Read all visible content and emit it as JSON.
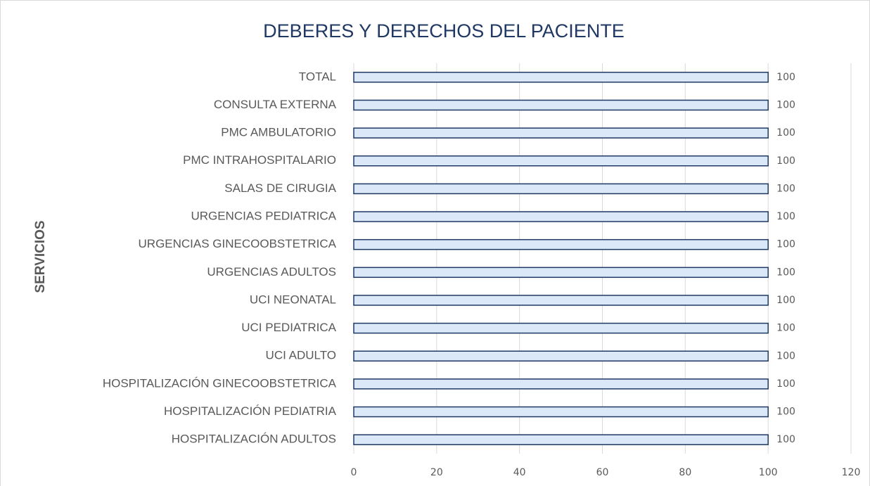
{
  "chart_data": {
    "type": "bar",
    "orientation": "horizontal",
    "title": "DEBERES Y DERECHOS DEL PACIENTE",
    "y_axis_label": "SERVICIOS",
    "categories": [
      "TOTAL",
      "CONSULTA EXTERNA",
      "PMC AMBULATORIO",
      "PMC INTRAHOSPITALARIO",
      "SALAS DE CIRUGIA",
      "URGENCIAS PEDIATRICA",
      "URGENCIAS GINECOOBSTETRICA",
      "URGENCIAS ADULTOS",
      "UCI NEONATAL",
      "UCI PEDIATRICA",
      "UCI ADULTO",
      "HOSPITALIZACIÓN GINECOOBSTETRICA",
      "HOSPITALIZACIÓN PEDIATRIA",
      "HOSPITALIZACIÓN ADULTOS"
    ],
    "values": [
      100,
      100,
      100,
      100,
      100,
      100,
      100,
      100,
      100,
      100,
      100,
      100,
      100,
      100
    ],
    "color": "#dae8f7",
    "edge_color": "#1f3864",
    "xlim": [
      0,
      120
    ],
    "xticks": [
      0,
      20,
      40,
      60,
      80,
      100,
      120
    ],
    "grid": true
  }
}
